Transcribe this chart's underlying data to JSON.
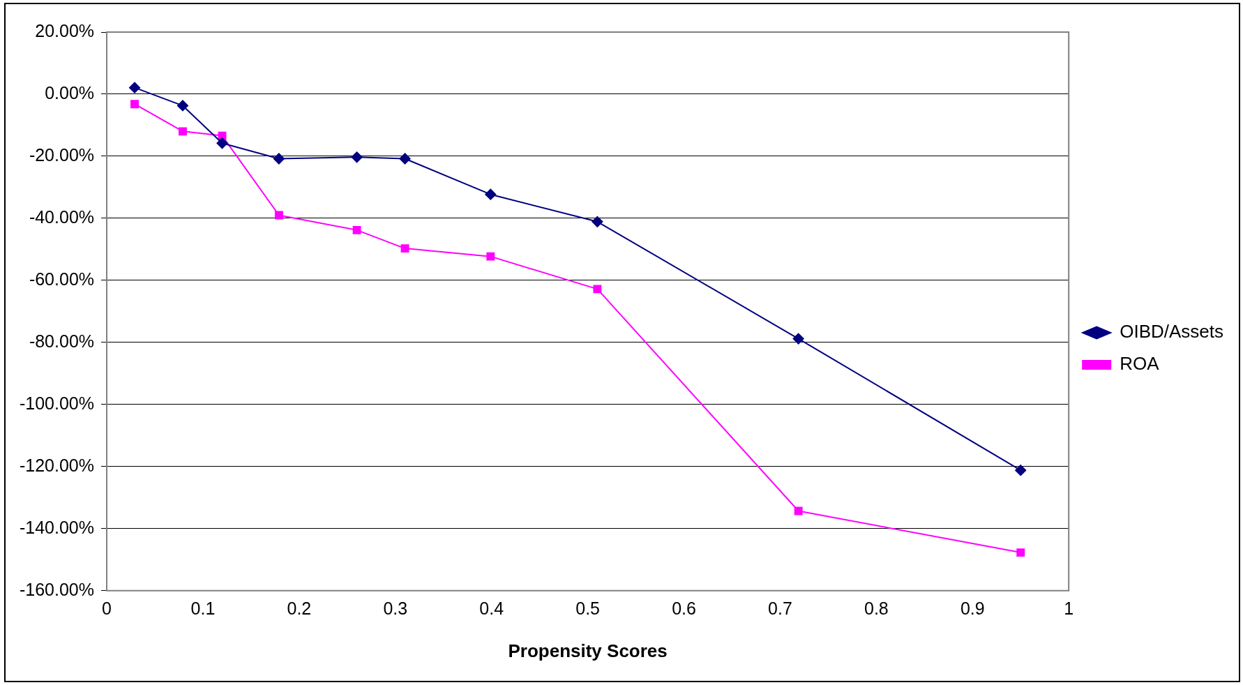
{
  "chart_data": {
    "type": "line",
    "xlabel": "Propensity Scores",
    "xlim": [
      0,
      1
    ],
    "xticks": [
      0,
      0.1,
      0.2,
      0.3,
      0.4,
      0.5,
      0.6,
      0.7,
      0.8,
      0.9,
      1
    ],
    "ylim": [
      -160,
      20
    ],
    "yticks": [
      {
        "value": 20,
        "label": "20.00%"
      },
      {
        "value": 0,
        "label": "0.00%"
      },
      {
        "value": -20,
        "label": "-20.00%"
      },
      {
        "value": -40,
        "label": "-40.00%"
      },
      {
        "value": -60,
        "label": "-60.00%"
      },
      {
        "value": -80,
        "label": "-80.00%"
      },
      {
        "value": -100,
        "label": "-100.00%"
      },
      {
        "value": -120,
        "label": "-120.00%"
      },
      {
        "value": -140,
        "label": "-140.00%"
      },
      {
        "value": -160,
        "label": "-160.00%"
      }
    ],
    "grid": "y",
    "legend": "right",
    "line_style": "solid",
    "x": [
      0.029,
      0.079,
      0.12,
      0.179,
      0.26,
      0.31,
      0.399,
      0.51,
      0.719,
      0.95
    ],
    "series": [
      {
        "name": "OIBD/Assets",
        "color": "#000080",
        "marker": "diamond",
        "values": [
          2.1,
          -3.7,
          -15.8,
          -20.8,
          -20.3,
          -20.8,
          -32.3,
          -41.1,
          -78.8,
          -121.2
        ]
      },
      {
        "name": "ROA",
        "color": "#ff00ff",
        "marker": "square",
        "values": [
          -3.2,
          -12.0,
          -13.4,
          -39.0,
          -43.8,
          -49.7,
          -52.3,
          -62.8,
          -134.3,
          -147.7
        ]
      }
    ]
  }
}
